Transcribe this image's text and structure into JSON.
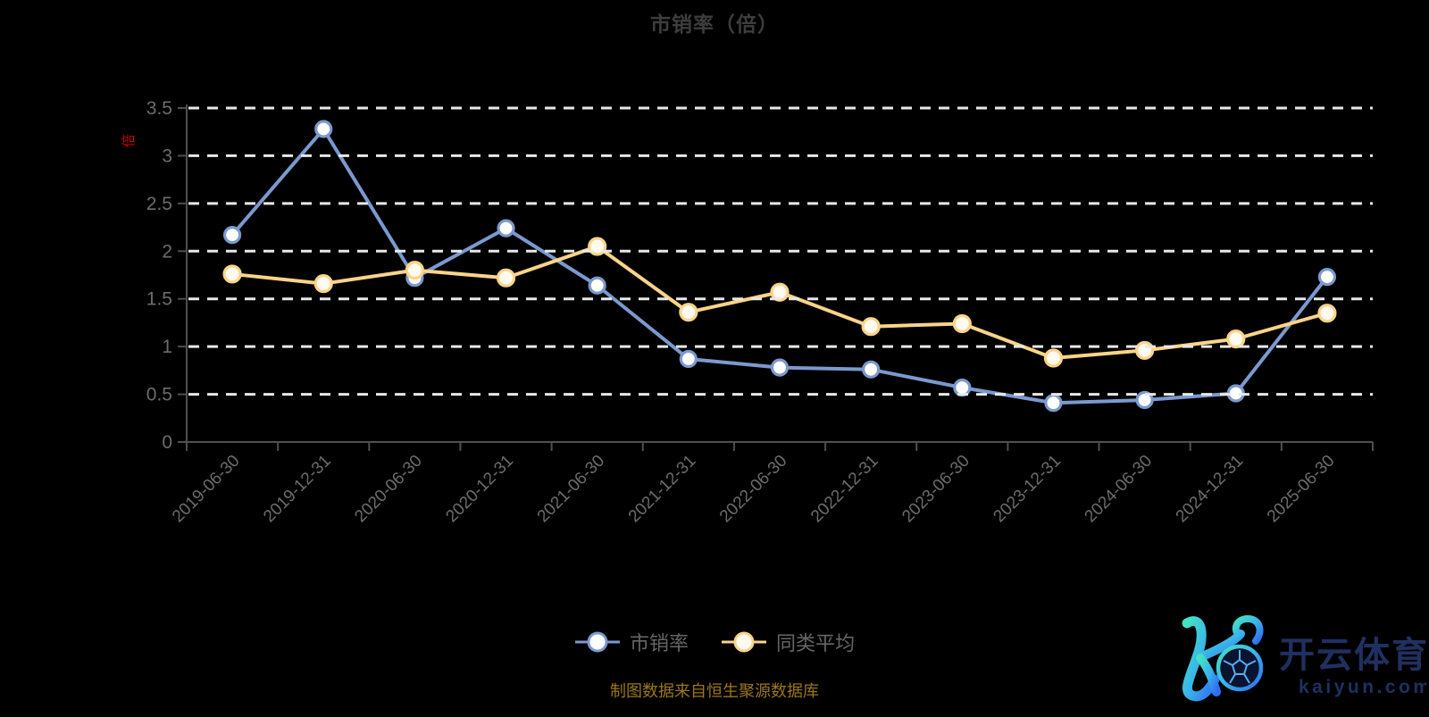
{
  "chart_data": {
    "type": "line",
    "title": "市销率（倍）",
    "categories": [
      "2019-06-30",
      "2019-12-31",
      "2020-06-30",
      "2020-12-31",
      "2021-06-30",
      "2021-12-31",
      "2022-06-30",
      "2022-12-31",
      "2023-06-30",
      "2023-12-31",
      "2024-06-30",
      "2024-12-31",
      "2025-06-30"
    ],
    "series": [
      {
        "name": "市销率",
        "color": "#7b99cf",
        "marker_fill": "#ffffff",
        "values": [
          2.17,
          3.28,
          1.72,
          2.24,
          1.64,
          0.87,
          0.78,
          0.76,
          0.57,
          0.41,
          0.44,
          0.51,
          1.73
        ]
      },
      {
        "name": "同类平均",
        "color": "#fbd488",
        "marker_fill": "#fffaf0",
        "values": [
          1.76,
          1.66,
          1.8,
          1.72,
          2.05,
          1.36,
          1.57,
          1.21,
          1.24,
          0.88,
          0.96,
          1.08,
          1.35
        ]
      }
    ],
    "y_axis": {
      "min": 0,
      "max": 3.5,
      "interval": 0.5,
      "unit": "倍",
      "tick_labels": [
        "0",
        "0.5",
        "1",
        "1.5",
        "2",
        "2.5",
        "3",
        "3.5"
      ]
    },
    "x_axis": {
      "label_rotation_deg": 45
    },
    "grid": {
      "horizontal_dashed": true,
      "drawn_above_series": true
    },
    "legend_position": "bottom-center"
  },
  "footer": {
    "source_note": "制图数据来自恒生聚源数据库"
  },
  "logo": {
    "monogram": "K",
    "brand_cn": "开云体育",
    "domain": "kaiyun.com"
  },
  "colors": {
    "background": "#000000",
    "title": "#3d3d3d",
    "axis": "#4f4f4f",
    "axis_label": "#6c6c6c",
    "grid": "#e8e8e8",
    "legend_text": "#666666",
    "footer_text": "#9b771b",
    "y_unit_red": "#cc0000",
    "logo_navy": "#1f3060",
    "logo_gradient": [
      "#42e3c3",
      "#3ab4ea",
      "#2f6df2"
    ]
  }
}
